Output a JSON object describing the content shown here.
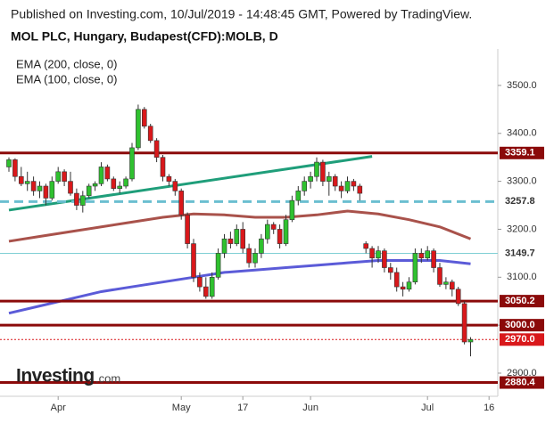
{
  "chart_data": {
    "type": "candlestick",
    "header": "Published on Investing.com, 10/Jul/2019 - 14:48:45 GMT, Powered by TradingView.",
    "title": "MOL PLC, Hungary, Budapest(CFD):MOLB, D",
    "logo": [
      "Investing",
      ".com"
    ],
    "up_color": "#2fc12f",
    "down_color": "#d9181b",
    "open": [
      3330,
      3345,
      3310,
      3295,
      3300,
      3280,
      3290,
      3265,
      3300,
      3320,
      3300,
      3275,
      3250,
      3270,
      3290,
      3295,
      3330,
      3305,
      3285,
      3290,
      3305,
      3370,
      3450,
      3415,
      3385,
      3350,
      3310,
      3300,
      3280,
      3230,
      3170,
      3100,
      3080,
      3060,
      3100,
      3150,
      3180,
      3170,
      3200,
      3160,
      3130,
      3150,
      3180,
      3210,
      3200,
      3170,
      3220,
      3260,
      3280,
      3300,
      3310,
      3340,
      3300,
      3310,
      3290,
      3280,
      3300,
      3290,
      3170,
      3160,
      3140,
      3155,
      3120,
      3110,
      3080,
      3075,
      3090,
      3150,
      3140,
      3155,
      3120,
      3085,
      3090,
      3075,
      3045,
      2965
    ],
    "high": [
      3350,
      3348,
      3330,
      3320,
      3310,
      3300,
      3295,
      3310,
      3330,
      3325,
      3320,
      3285,
      3280,
      3295,
      3300,
      3340,
      3335,
      3310,
      3300,
      3310,
      3380,
      3460,
      3455,
      3420,
      3390,
      3355,
      3315,
      3305,
      3285,
      3235,
      3180,
      3110,
      3100,
      3110,
      3160,
      3190,
      3195,
      3210,
      3215,
      3170,
      3160,
      3190,
      3220,
      3215,
      3210,
      3230,
      3270,
      3290,
      3310,
      3320,
      3350,
      3345,
      3320,
      3315,
      3300,
      3310,
      3305,
      3295,
      3175,
      3165,
      3165,
      3160,
      3130,
      3120,
      3090,
      3100,
      3160,
      3160,
      3165,
      3160,
      3130,
      3100,
      3095,
      3080,
      3050,
      2975
    ],
    "low": [
      3320,
      3300,
      3290,
      3280,
      3270,
      3265,
      3250,
      3260,
      3295,
      3290,
      3270,
      3240,
      3235,
      3265,
      3280,
      3290,
      3300,
      3280,
      3275,
      3285,
      3300,
      3365,
      3410,
      3380,
      3340,
      3300,
      3290,
      3270,
      3220,
      3160,
      3090,
      3070,
      3055,
      3055,
      3095,
      3140,
      3160,
      3165,
      3150,
      3120,
      3120,
      3140,
      3170,
      3190,
      3160,
      3165,
      3215,
      3250,
      3270,
      3285,
      3300,
      3290,
      3270,
      3280,
      3265,
      3275,
      3280,
      3260,
      3150,
      3120,
      3130,
      3110,
      3095,
      3070,
      3060,
      3070,
      3085,
      3130,
      3135,
      3110,
      3080,
      3075,
      3060,
      3040,
      2960,
      2935
    ],
    "close": [
      3345,
      3310,
      3295,
      3300,
      3280,
      3290,
      3265,
      3300,
      3320,
      3300,
      3275,
      3250,
      3270,
      3290,
      3295,
      3330,
      3305,
      3285,
      3290,
      3305,
      3370,
      3450,
      3415,
      3385,
      3350,
      3310,
      3300,
      3280,
      3230,
      3170,
      3100,
      3080,
      3060,
      3100,
      3150,
      3180,
      3170,
      3200,
      3160,
      3130,
      3150,
      3180,
      3210,
      3200,
      3170,
      3220,
      3260,
      3280,
      3300,
      3310,
      3340,
      3300,
      3310,
      3290,
      3280,
      3300,
      3290,
      3275,
      3160,
      3140,
      3155,
      3120,
      3110,
      3080,
      3075,
      3090,
      3150,
      3140,
      3155,
      3120,
      3085,
      3090,
      3075,
      3045,
      2965,
      2970
    ],
    "series": [
      {
        "name": "EMA (200, close, 0)",
        "color": "#5b5bd8",
        "x": [
          0,
          5,
          10,
          15,
          20,
          25,
          30,
          35,
          40,
          45,
          50,
          55,
          60,
          65,
          70,
          75
        ],
        "values": [
          3025,
          3040,
          3055,
          3070,
          3080,
          3090,
          3100,
          3110,
          3115,
          3120,
          3125,
          3130,
          3135,
          3135,
          3135,
          3128
        ]
      },
      {
        "name": "EMA (100, close, 0)",
        "color": "#a9524b",
        "x": [
          0,
          5,
          10,
          15,
          20,
          25,
          30,
          35,
          40,
          45,
          50,
          55,
          60,
          65,
          70,
          75
        ],
        "values": [
          3175,
          3185,
          3195,
          3205,
          3215,
          3225,
          3232,
          3230,
          3225,
          3225,
          3230,
          3238,
          3232,
          3220,
          3205,
          3180
        ]
      }
    ],
    "trendline": {
      "color": "#1f9e7a",
      "x": [
        0,
        59
      ],
      "values": [
        3240,
        3352
      ]
    },
    "levels": [
      {
        "value": 3359.1,
        "label": "3359.1",
        "color": "#8b0a0a",
        "style": "solid"
      },
      {
        "value": 3257.8,
        "label": "3257.8",
        "color": "#6bbfd0",
        "style": "dashed"
      },
      {
        "value": 3149.7,
        "label": "3149.7",
        "color": "#7fcfd4",
        "style": "thin"
      },
      {
        "value": 3050.2,
        "label": "3050.2",
        "color": "#8b0a0a",
        "style": "solid"
      },
      {
        "value": 3000,
        "label": "3000.0",
        "color": "#8b0a0a",
        "style": "solid"
      },
      {
        "value": 2970,
        "label": "2970.0",
        "color": "#d9181b",
        "style": "dotted"
      },
      {
        "value": 2880.4,
        "label": "2880.4",
        "color": "#8b0a0a",
        "style": "solid"
      }
    ],
    "ylim": [
      2861,
      3576
    ],
    "yticks": [
      {
        "value": 2900,
        "label": "2900.0"
      },
      {
        "value": 3000,
        "label": "3000.0"
      },
      {
        "value": 3100,
        "label": "3100.0"
      },
      {
        "value": 3200,
        "label": "3200.0"
      },
      {
        "value": 3300,
        "label": "3300.0"
      },
      {
        "value": 3400,
        "label": "3400.0"
      },
      {
        "value": 3500,
        "label": "3500.0"
      }
    ],
    "xticks": [
      {
        "value": 8,
        "label": "Apr"
      },
      {
        "value": 28,
        "label": "May"
      },
      {
        "value": 38,
        "label": "17"
      },
      {
        "value": 49,
        "label": "Jun"
      },
      {
        "value": 68,
        "label": "Jul"
      },
      {
        "value": 78,
        "label": "16"
      }
    ]
  }
}
